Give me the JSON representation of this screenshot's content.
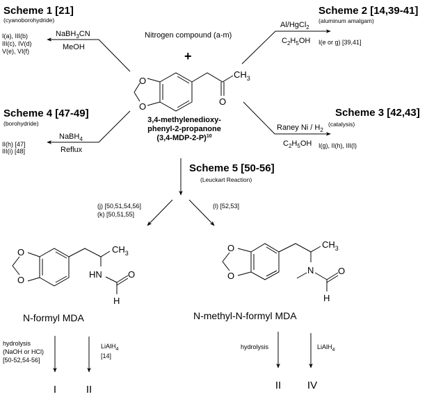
{
  "starting_material": {
    "reactant": "Nitrogen compound (a-m)",
    "plus": "+",
    "name_line1": "3,4-methylenedioxy-",
    "name_line2": "phenyl-2-propanone",
    "name_line3": "(3,4-MDP-2-P)",
    "name_ref": "10",
    "atoms": {
      "o": "O",
      "ch": "CH",
      "three": "3"
    }
  },
  "schemes": [
    {
      "title": "Scheme 1 [21]",
      "subtitle": "(cyanoborohydride)",
      "reagent_above": {
        "a": "NaBH",
        "s": "3",
        "b": "CN"
      },
      "reagent_below": "MeOH",
      "products": [
        "I(a), III(b)",
        "III(c), IV(d)",
        "V(e), VI(f)"
      ]
    },
    {
      "title": "Scheme 2 [14,39-41]",
      "subtitle": "(aluminum amalgam)",
      "reagent_above": {
        "a": "Al/HgCl",
        "s": "2",
        "b": ""
      },
      "reagent_below": {
        "a": "C",
        "s1": "2",
        "b": "H",
        "s2": "5",
        "c": "OH"
      },
      "products": [
        "I(e or g) [39,41]"
      ]
    },
    {
      "title": "Scheme 3 [42,43]",
      "subtitle": "(catalysis)",
      "reagent_above": {
        "a": "Raney Ni / H",
        "s": "2",
        "b": ""
      },
      "reagent_below": {
        "a": "C",
        "s1": "2",
        "b": "H",
        "s2": "5",
        "c": "OH"
      },
      "products": [
        "I(g), II(h), III(l)"
      ]
    },
    {
      "title": "Scheme 4 [47-49]",
      "subtitle": "(borohydride)",
      "reagent_above": {
        "a": "NaBH",
        "s": "4",
        "b": ""
      },
      "reagent_below": "Reflux",
      "products": [
        "II(h) [47]",
        "III(i) [48]"
      ]
    },
    {
      "title": "Scheme 5 [50-56]",
      "subtitle": "(Leuckart Reaction)",
      "branch_left": [
        "(j) [50,51,54,56]",
        "(k) [50,51,55]"
      ],
      "branch_right": "(l) [52,53]"
    }
  ],
  "products": {
    "left": {
      "name": "N-formyl MDA",
      "atoms": {
        "o": "O",
        "hn": "HN",
        "h": "H",
        "ch": "CH",
        "three": "3"
      },
      "hydrolysis": [
        "hydrolysis",
        "(NaOH or HCl)",
        "[50-52,54-56]"
      ],
      "lialh": {
        "a": "LiAlH",
        "s": "4"
      },
      "lialh_ref": "[14]",
      "results": [
        "I",
        "II"
      ]
    },
    "right": {
      "name": "N-methyl-N-formyl MDA",
      "atoms": {
        "o": "O",
        "n": "N",
        "h": "H",
        "ch": "CH",
        "three": "3"
      },
      "hydrolysis": "hydrolysis",
      "lialh": {
        "a": "LiAlH",
        "s": "4"
      },
      "results": [
        "II",
        "IV"
      ]
    }
  }
}
